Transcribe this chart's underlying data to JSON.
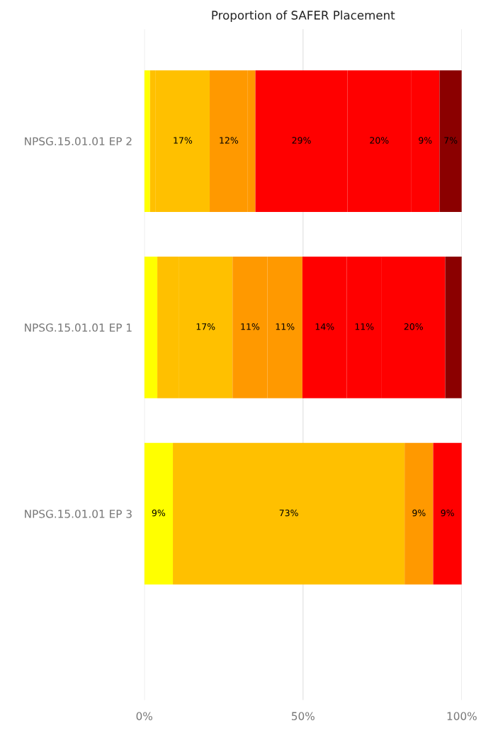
{
  "chart_data": {
    "type": "bar",
    "orientation": "horizontal",
    "stacked": true,
    "title": "Proportion of SAFER Placement",
    "categories": [
      "NPSG.15.01.01 EP 2",
      "NPSG.15.01.01 EP 1",
      "NPSG.15.01.01 EP 3"
    ],
    "series": [
      {
        "colors": [
          "#ffff00",
          "#ffff00",
          "#ffff00"
        ],
        "values": [
          1.8,
          4.1,
          9
        ],
        "value_labels": [
          null,
          null,
          "9%"
        ]
      },
      {
        "colors": [
          "#ffc000",
          "#ffc000",
          "#ffc000"
        ],
        "values": [
          1.8,
          6.7,
          73
        ],
        "value_labels": [
          null,
          null,
          "73%"
        ]
      },
      {
        "colors": [
          "#ffc000",
          "#ffc000",
          "#ff9900"
        ],
        "values": [
          17,
          17,
          9
        ],
        "value_labels": [
          "17%",
          "17%",
          "9%"
        ]
      },
      {
        "colors": [
          "#ff9900",
          "#ff9900",
          "#ff0000"
        ],
        "values": [
          12,
          11,
          9
        ],
        "value_labels": [
          "12%",
          "11%",
          "9%"
        ]
      },
      {
        "colors": [
          "#ff9900",
          "#ff9900",
          null
        ],
        "values": [
          2.4,
          11,
          null
        ],
        "value_labels": [
          null,
          "11%",
          null
        ]
      },
      {
        "colors": [
          "#ff0000",
          "#ff0000",
          null
        ],
        "values": [
          29,
          14,
          null
        ],
        "value_labels": [
          "29%",
          "14%",
          null
        ]
      },
      {
        "colors": [
          "#ff0000",
          "#ff0000",
          null
        ],
        "values": [
          20,
          11,
          null
        ],
        "value_labels": [
          "20%",
          "11%",
          null
        ]
      },
      {
        "colors": [
          "#ff0000",
          "#ff0000",
          null
        ],
        "values": [
          9,
          20,
          null
        ],
        "value_labels": [
          "9%",
          "20%",
          null
        ]
      },
      {
        "colors": [
          "#8b0000",
          "#8b0000",
          null
        ],
        "values": [
          7,
          5.2,
          null
        ],
        "value_labels": [
          "7%",
          null,
          null
        ]
      }
    ],
    "xlim": [
      0,
      100
    ],
    "xticks": [
      {
        "value": 0,
        "label": "0%"
      },
      {
        "value": 50,
        "label": "50%"
      },
      {
        "value": 100,
        "label": "100%"
      }
    ],
    "grid": "x",
    "legend": false
  }
}
